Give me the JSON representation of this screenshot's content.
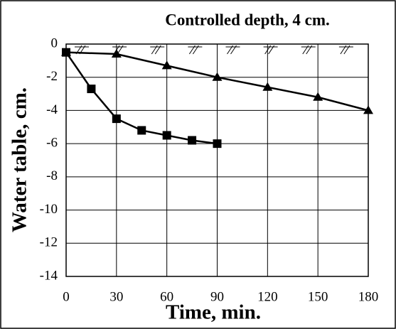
{
  "chart_data": {
    "type": "line",
    "title": "Controlled depth, 4 cm.",
    "x_label": "Time, min.",
    "y_label": "Water table, cm.",
    "xlim": [
      0,
      180
    ],
    "xticks": [
      0,
      30,
      60,
      90,
      120,
      150,
      180
    ],
    "ylim": [
      -14,
      0
    ],
    "yticks": [
      0,
      -2,
      -4,
      -6,
      -8,
      -10,
      -12,
      -14
    ],
    "grid": true,
    "series": [
      {
        "color": "#000000",
        "marker": "triangle",
        "x": [
          0,
          30,
          60,
          90,
          120,
          150,
          180
        ],
        "values": [
          -0.5,
          -0.6,
          -1.3,
          -2,
          -2.6,
          -3.2,
          -4
        ]
      },
      {
        "color": "#000000",
        "marker": "square",
        "x": [
          0,
          15,
          30,
          45,
          60,
          75,
          90
        ],
        "values": [
          -0.5,
          -2.7,
          -4.5,
          -5.2,
          -5.5,
          -5.8,
          -6
        ]
      }
    ]
  }
}
